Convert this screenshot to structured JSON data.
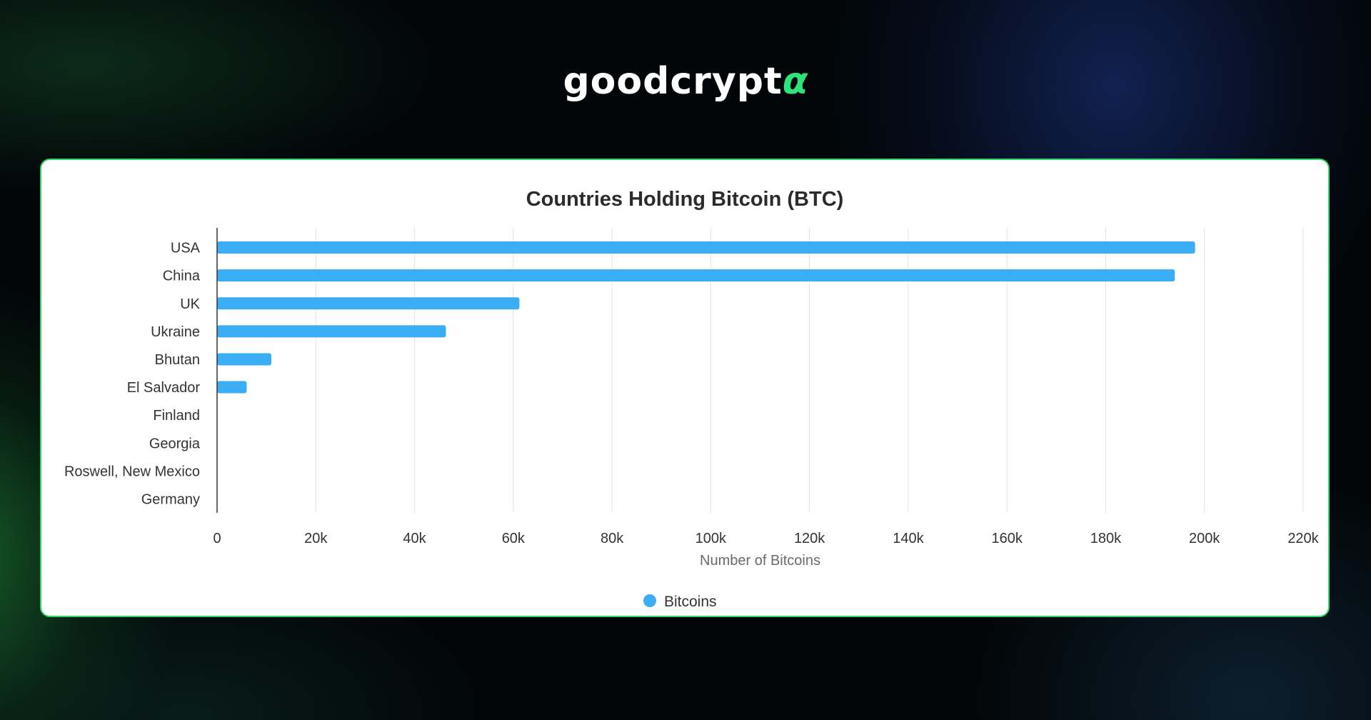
{
  "brand": {
    "logo_text": "goodcrypt",
    "logo_mark": "α"
  },
  "colors": {
    "bar": "#3aadf4",
    "card_border": "#2fd66b",
    "brand_accent": "#2ee37a"
  },
  "chart_data": {
    "type": "bar",
    "orientation": "horizontal",
    "title": "Countries Holding Bitcoin (BTC)",
    "xlabel": "Number of Bitcoins",
    "ylabel": "",
    "categories": [
      "USA",
      "China",
      "UK",
      "Ukraine",
      "Bhutan",
      "El Salvador",
      "Finland",
      "Georgia",
      "Roswell, New Mexico",
      "Germany"
    ],
    "series": [
      {
        "name": "Bitcoins",
        "values": [
          198109,
          194000,
          61245,
          46351,
          11000,
          6000,
          0,
          0,
          0,
          0
        ]
      }
    ],
    "xlim": [
      0,
      220000
    ],
    "x_ticks": [
      0,
      20000,
      40000,
      60000,
      80000,
      100000,
      120000,
      140000,
      160000,
      180000,
      200000,
      220000
    ],
    "x_tick_labels": [
      "0",
      "20k",
      "40k",
      "60k",
      "80k",
      "100k",
      "120k",
      "140k",
      "160k",
      "180k",
      "200k",
      "220k"
    ],
    "grid": "vertical",
    "legend_position": "bottom-center"
  }
}
